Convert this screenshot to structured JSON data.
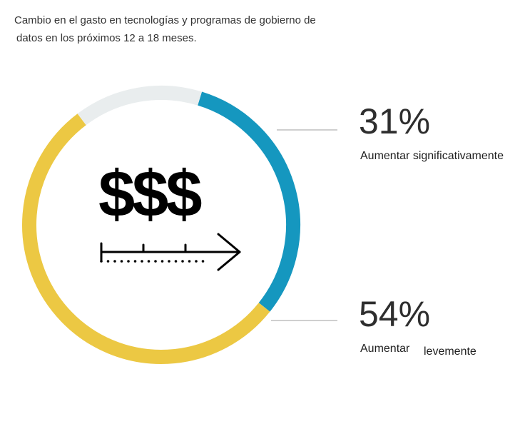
{
  "title": {
    "line1": "Cambio en el gasto en tecnologías y programas de gobierno de",
    "line2": "datos en los próximos 12 a 18 meses."
  },
  "center_symbol": "$$$",
  "icons": [
    "dollar-signs-icon",
    "timeline-arrow-icon"
  ],
  "colors": {
    "significant": "#1597bf",
    "slight": "#ecc843",
    "other": "#e9edee",
    "leader": "#cfcfcf"
  },
  "chart_data": {
    "type": "pie",
    "style": "donut",
    "title": "Cambio en el gasto en tecnologías y programas de gobierno de datos en los próximos 12 a 18 meses.",
    "slices": [
      {
        "label": "Aumentar significativamente",
        "value": 31,
        "value_label": "31%",
        "color": "#1597bf"
      },
      {
        "label": "Aumentar levemente",
        "value": 54,
        "value_label": "54%",
        "color": "#ecc843"
      },
      {
        "label": "",
        "value": 15,
        "value_label": "",
        "color": "#e9edee"
      }
    ],
    "legend": "right",
    "callouts": [
      {
        "value_label": "31%",
        "label": "Aumentar significativamente"
      },
      {
        "value_label": "54%",
        "label_part1": "Aumentar",
        "label_part2": "levemente"
      }
    ]
  }
}
